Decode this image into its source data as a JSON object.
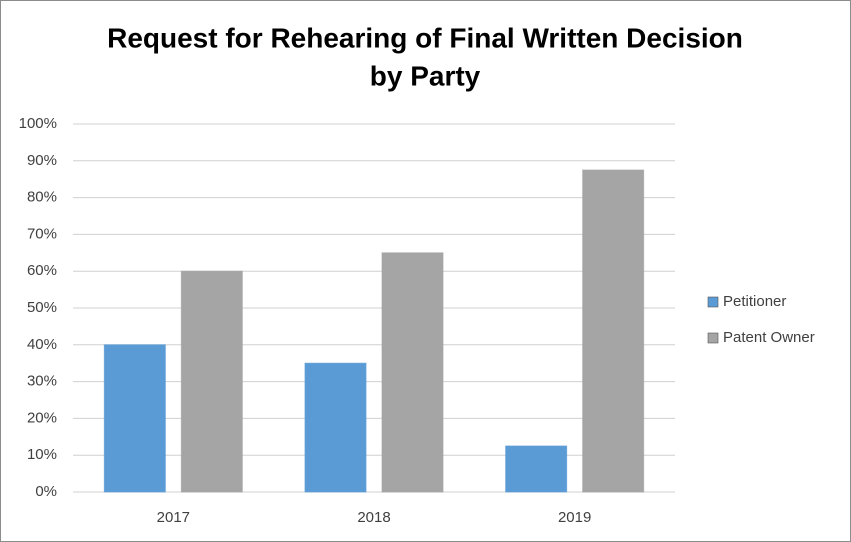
{
  "chart_data": {
    "type": "bar",
    "title": [
      "Request for Rehearing of Final Written Decision",
      "by Party"
    ],
    "categories": [
      "2017",
      "2018",
      "2019"
    ],
    "series": [
      {
        "name": "Petitioner",
        "color": "#5b9bd5",
        "values": [
          40,
          35,
          12.5
        ]
      },
      {
        "name": "Patent Owner",
        "color": "#a5a5a5",
        "values": [
          60,
          65,
          87.5
        ]
      }
    ],
    "ylim": [
      0,
      100
    ],
    "yticks": [
      {
        "value": 0,
        "label": "0%"
      },
      {
        "value": 10,
        "label": "10%"
      },
      {
        "value": 20,
        "label": "20%"
      },
      {
        "value": 30,
        "label": "30%"
      },
      {
        "value": 40,
        "label": "40%"
      },
      {
        "value": 50,
        "label": "50%"
      },
      {
        "value": 60,
        "label": "60%"
      },
      {
        "value": 70,
        "label": "70%"
      },
      {
        "value": 80,
        "label": "80%"
      },
      {
        "value": 90,
        "label": "90%"
      },
      {
        "value": 100,
        "label": "100%"
      }
    ],
    "grid": true,
    "legend": "right"
  }
}
